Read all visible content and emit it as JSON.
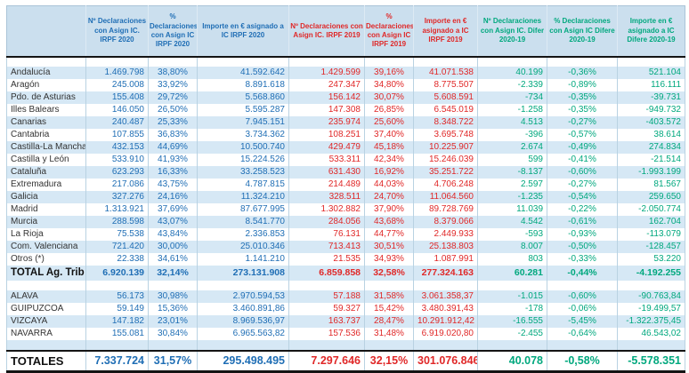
{
  "colors": {
    "blue_2020": "#1f6eb5",
    "red_2019": "#e02828",
    "green_diff": "#00a87e",
    "row_shade": "#d6e8f5",
    "header_bg": "#cbdfee"
  },
  "header": {
    "columns": [
      {
        "label": "",
        "group": "region"
      },
      {
        "label": "Nº Declaraciones con Asign IC. IRPF 2020",
        "group": "y2020"
      },
      {
        "label": "% Declaraciones con Asign IC IRPF 2020",
        "group": "y2020"
      },
      {
        "label": "Importe en € asignado a IC IRPF 2020",
        "group": "y2020"
      },
      {
        "label": "Nº Declaraciones con Asign IC. IRPF 2019",
        "group": "y2019"
      },
      {
        "label": "% Declaraciones con Asign IC IRPF 2019",
        "group": "y2019"
      },
      {
        "label": "Importe en € asignado a IC IRPF 2019",
        "group": "y2019"
      },
      {
        "label": "Nº Declaraciones con Asign IC. Difer 2020-19",
        "group": "diff"
      },
      {
        "label": "% Declaraciones con Asign IC Difere 2020-19",
        "group": "diff"
      },
      {
        "label": "Importe en € asignado a IC Difere 2020-19",
        "group": "diff"
      }
    ]
  },
  "regions": [
    {
      "name": "Andalucía",
      "values": [
        "1.469.798",
        "38,80%",
        "41.592.642",
        "1.429.599",
        "39,16%",
        "41.071.538",
        "40.199",
        "-0,36%",
        "521.104"
      ]
    },
    {
      "name": "Aragón",
      "values": [
        "245.008",
        "33,92%",
        "8.891.618",
        "247.347",
        "34,80%",
        "8.775.507",
        "-2.339",
        "-0,89%",
        "116.111"
      ]
    },
    {
      "name": "Pdo. de Asturias",
      "values": [
        "155.408",
        "29,72%",
        "5.568.860",
        "156.142",
        "30,07%",
        "5.608.591",
        "-734",
        "-0,35%",
        "-39.731"
      ]
    },
    {
      "name": "Illes Balears",
      "values": [
        "146.050",
        "26,50%",
        "5.595.287",
        "147.308",
        "26,85%",
        "6.545.019",
        "-1.258",
        "-0,35%",
        "-949.732"
      ]
    },
    {
      "name": "Canarias",
      "values": [
        "240.487",
        "25,33%",
        "7.945.151",
        "235.974",
        "25,60%",
        "8.348.722",
        "4.513",
        "-0,27%",
        "-403.572"
      ]
    },
    {
      "name": "Cantabria",
      "values": [
        "107.855",
        "36,83%",
        "3.734.362",
        "108.251",
        "37,40%",
        "3.695.748",
        "-396",
        "-0,57%",
        "38.614"
      ]
    },
    {
      "name": "Castilla-La Mancha",
      "values": [
        "432.153",
        "44,69%",
        "10.500.740",
        "429.479",
        "45,18%",
        "10.225.907",
        "2.674",
        "-0,49%",
        "274.834"
      ]
    },
    {
      "name": "Castilla y León",
      "values": [
        "533.910",
        "41,93%",
        "15.224.526",
        "533.311",
        "42,34%",
        "15.246.039",
        "599",
        "-0,41%",
        "-21.514"
      ]
    },
    {
      "name": "Cataluña",
      "values": [
        "623.293",
        "16,33%",
        "33.258.523",
        "631.430",
        "16,92%",
        "35.251.722",
        "-8.137",
        "-0,60%",
        "-1.993.199"
      ]
    },
    {
      "name": "Extremadura",
      "values": [
        "217.086",
        "43,75%",
        "4.787.815",
        "214.489",
        "44,03%",
        "4.706.248",
        "2.597",
        "-0,27%",
        "81.567"
      ]
    },
    {
      "name": "Galicia",
      "values": [
        "327.276",
        "24,16%",
        "11.324.210",
        "328.511",
        "24,70%",
        "11.064.560",
        "-1.235",
        "-0,54%",
        "259.650"
      ]
    },
    {
      "name": "Madrid",
      "values": [
        "1.313.921",
        "37,69%",
        "87.677.995",
        "1.302.882",
        "37,90%",
        "89.728.769",
        "11.039",
        "-0,22%",
        "-2.050.774"
      ]
    },
    {
      "name": "Murcia",
      "values": [
        "288.598",
        "43,07%",
        "8.541.770",
        "284.056",
        "43,68%",
        "8.379.066",
        "4.542",
        "-0,61%",
        "162.704"
      ]
    },
    {
      "name": "La Rioja",
      "values": [
        "75.538",
        "43,84%",
        "2.336.853",
        "76.131",
        "44,77%",
        "2.449.933",
        "-593",
        "-0,93%",
        "-113.079"
      ]
    },
    {
      "name": "Com. Valenciana",
      "values": [
        "721.420",
        "30,00%",
        "25.010.346",
        "713.413",
        "30,51%",
        "25.138.803",
        "8.007",
        "-0,50%",
        "-128.457"
      ]
    },
    {
      "name": "Otros (*)",
      "values": [
        "22.338",
        "34,61%",
        "1.141.210",
        "21.535",
        "34,93%",
        "1.087.991",
        "803",
        "-0,33%",
        "53.220"
      ]
    }
  ],
  "total_ag_trib": {
    "name": "TOTAL Ag. Trib",
    "values": [
      "6.920.139",
      "32,14%",
      "273.131.908",
      "6.859.858",
      "32,58%",
      "277.324.163",
      "60.281",
      "-0,44%",
      "-4.192.255"
    ]
  },
  "foral": [
    {
      "name": "ALAVA",
      "values": [
        "56.173",
        "30,98%",
        "2.970.594,53",
        "57.188",
        "31,58%",
        "3.061.358,37",
        "-1.015",
        "-0,60%",
        "-90.763,84"
      ]
    },
    {
      "name": "GUIPUZCOA",
      "values": [
        "59.149",
        "15,36%",
        "3.460.891,86",
        "59.327",
        "15,42%",
        "3.480.391,43",
        "-178",
        "-0,06%",
        "-19.499,57"
      ]
    },
    {
      "name": "VIZCAYA",
      "values": [
        "147.182",
        "23,01%",
        "8.969.536,97",
        "163.737",
        "28,47%",
        "10.291.912,42",
        "-16.555",
        "-5,45%",
        "-1.322.375,45"
      ]
    },
    {
      "name": "NAVARRA",
      "values": [
        "155.081",
        "30,84%",
        "6.965.563,82",
        "157.536",
        "31,48%",
        "6.919.020,80",
        "-2.455",
        "-0,64%",
        "46.543,02"
      ]
    }
  ],
  "totales": {
    "name": "TOTALES",
    "values": [
      "7.337.724",
      "31,57%",
      "295.498.495",
      "7.297.646",
      "32,15%",
      "301.076.846",
      "40.078",
      "-0,58%",
      "-5.578.351"
    ]
  }
}
